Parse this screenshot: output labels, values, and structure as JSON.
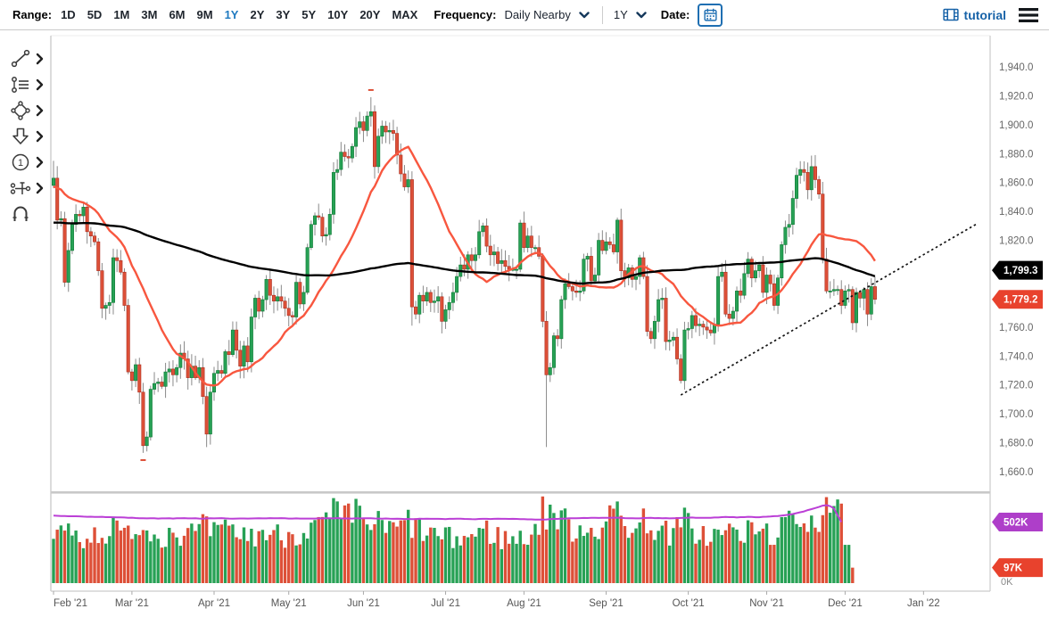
{
  "toolbar": {
    "range_label": "Range:",
    "ranges": [
      "1D",
      "5D",
      "1M",
      "3M",
      "6M",
      "9M",
      "1Y",
      "2Y",
      "3Y",
      "5Y",
      "10Y",
      "20Y",
      "MAX"
    ],
    "active_range": "1Y",
    "frequency_label": "Frequency:",
    "frequency_value": "Daily Nearby",
    "period_value": "1Y",
    "date_label": "Date:",
    "tutorial_label": "tutorial"
  },
  "sidebar": {
    "tools": [
      "trendline-tool",
      "annotation-list-tool",
      "polygon-tool",
      "arrow-tool",
      "number-annotation-tool",
      "measure-tool",
      "magnet-tool"
    ],
    "number_tool_label": "1"
  },
  "chart_data": {
    "type": "candlestick+volume",
    "x_labels": [
      "Feb '21",
      "Mar '21",
      "Apr '21",
      "May '21",
      "Jun '21",
      "Jul '21",
      "Aug '21",
      "Sep '21",
      "Oct '21",
      "Nov '21",
      "Dec '21",
      "Jan '22"
    ],
    "month_start_days": [
      0,
      21,
      43,
      63,
      83,
      105,
      126,
      148,
      170,
      191,
      212,
      233
    ],
    "y_ticks": [
      {
        "v": 1940,
        "label": "1,940.0"
      },
      {
        "v": 1920,
        "label": "1,920.0"
      },
      {
        "v": 1900,
        "label": "1,900.0"
      },
      {
        "v": 1880,
        "label": "1,880.0"
      },
      {
        "v": 1860,
        "label": "1,860.0"
      },
      {
        "v": 1840,
        "label": "1,840.0"
      },
      {
        "v": 1820,
        "label": "1,820.0"
      },
      {
        "v": 1760,
        "label": "1,760.0"
      },
      {
        "v": 1740,
        "label": "1,740.0"
      },
      {
        "v": 1720,
        "label": "1,720.0"
      },
      {
        "v": 1700,
        "label": "1,700.0"
      },
      {
        "v": 1680,
        "label": "1,680.0"
      },
      {
        "v": 1660,
        "label": "1,660.0"
      }
    ],
    "price_range": [
      1660,
      1940
    ],
    "price_badges": [
      {
        "text": "1,799.3",
        "price": 1799.3,
        "color": "#000000"
      },
      {
        "text": "1,779.2",
        "price": 1779.2,
        "color": "#e8422d"
      }
    ],
    "volume_badges": [
      {
        "text": "502K",
        "valueK": 502,
        "series": "open-interest",
        "color": "#ae3ec9"
      },
      {
        "text": "97K",
        "valueK": 97,
        "series": "volume",
        "color": "#e8422d"
      }
    ],
    "volume_zero_label": "0K",
    "closes": [
      1863,
      1834,
      1835,
      1791,
      1813,
      1831,
      1838,
      1837,
      1843,
      1826,
      1823,
      1819,
      1799,
      1773,
      1775,
      1777,
      1808,
      1806,
      1798,
      1775,
      1729,
      1723,
      1734,
      1715,
      1678,
      1684,
      1717,
      1721,
      1722,
      1719,
      1729,
      1731,
      1727,
      1732,
      1742,
      1738,
      1725,
      1733,
      1725,
      1732,
      1712,
      1686,
      1715,
      1728,
      1730,
      1728,
      1743,
      1741,
      1758,
      1744,
      1733,
      1747,
      1736,
      1767,
      1780,
      1771,
      1779,
      1793,
      1782,
      1778,
      1781,
      1778,
      1773,
      1768,
      1767,
      1791,
      1776,
      1784,
      1815,
      1831,
      1837,
      1836,
      1823,
      1824,
      1838,
      1867,
      1869,
      1881,
      1878,
      1877,
      1885,
      1898,
      1902,
      1896,
      1906,
      1909,
      1871,
      1892,
      1899,
      1895,
      1896,
      1894,
      1879,
      1866,
      1857,
      1862,
      1774,
      1769,
      1782,
      1778,
      1784,
      1777,
      1778,
      1781,
      1764,
      1772,
      1777,
      1784,
      1795,
      1803,
      1800,
      1810,
      1806,
      1810,
      1826,
      1830,
      1816,
      1810,
      1812,
      1804,
      1806,
      1802,
      1800,
      1800,
      1800,
      1832,
      1815,
      1823,
      1815,
      1815,
      1809,
      1764,
      1727,
      1732,
      1754,
      1752,
      1779,
      1790,
      1788,
      1785,
      1784,
      1785,
      1807,
      1809,
      1792,
      1796,
      1820,
      1813,
      1819,
      1817,
      1812,
      1834,
      1799,
      1794,
      1801,
      1793,
      1795,
      1808,
      1795,
      1757,
      1752,
      1764,
      1779,
      1780,
      1750,
      1751,
      1753,
      1738,
      1723,
      1758,
      1759,
      1768,
      1761,
      1762,
      1760,
      1758,
      1756,
      1762,
      1795,
      1798,
      1769,
      1766,
      1771,
      1785,
      1782,
      1797,
      1807,
      1794,
      1799,
      1803,
      1784,
      1796,
      1790,
      1775,
      1794,
      1817,
      1829,
      1831,
      1849,
      1865,
      1869,
      1867,
      1855,
      1871,
      1862,
      1852,
      1807,
      1785,
      1785,
      1786,
      1786,
      1775,
      1785,
      1786,
      1763,
      1784,
      1780,
      1786,
      1769,
      1788,
      1779.2
    ],
    "first_open": 1858,
    "high_overrides": {
      "0": 1875,
      "85": 1919,
      "204": 1879
    },
    "low_overrides": {
      "24": 1673,
      "41": 1677,
      "96": 1761,
      "132": 1677,
      "168": 1721,
      "214": 1758
    },
    "extreme_markers": [
      {
        "day": 24,
        "price": 1668,
        "type": "low"
      },
      {
        "day": 85,
        "price": 1924,
        "type": "high"
      }
    ],
    "ma_fast": {
      "window": 21,
      "pad": 1857,
      "color": "#f8573f"
    },
    "ma_slow": {
      "window": 130,
      "pad": 1832,
      "color": "#000000"
    },
    "trendline": {
      "x1_day": 168,
      "price1": 1713,
      "x2_day": 247,
      "price2": 1831,
      "style": "dashed"
    },
    "volume_envelopeK": [
      [
        0,
        300
      ],
      [
        4,
        330
      ],
      [
        8,
        290
      ],
      [
        12,
        310
      ],
      [
        16,
        330
      ],
      [
        20,
        300
      ],
      [
        21,
        380
      ],
      [
        24,
        350
      ],
      [
        28,
        300
      ],
      [
        32,
        330
      ],
      [
        36,
        300
      ],
      [
        40,
        340
      ],
      [
        44,
        310
      ],
      [
        48,
        330
      ],
      [
        52,
        290
      ],
      [
        56,
        320
      ],
      [
        60,
        300
      ],
      [
        64,
        310
      ],
      [
        68,
        340
      ],
      [
        72,
        360
      ],
      [
        75,
        430
      ],
      [
        78,
        390
      ],
      [
        81,
        430
      ],
      [
        84,
        390
      ],
      [
        88,
        350
      ],
      [
        92,
        330
      ],
      [
        95,
        390
      ],
      [
        98,
        330
      ],
      [
        102,
        300
      ],
      [
        105,
        280
      ],
      [
        108,
        270
      ],
      [
        112,
        300
      ],
      [
        116,
        330
      ],
      [
        120,
        280
      ],
      [
        124,
        270
      ],
      [
        128,
        310
      ],
      [
        131,
        430
      ],
      [
        133,
        460
      ],
      [
        136,
        390
      ],
      [
        140,
        340
      ],
      [
        144,
        360
      ],
      [
        148,
        350
      ],
      [
        151,
        470
      ],
      [
        153,
        390
      ],
      [
        156,
        330
      ],
      [
        159,
        410
      ],
      [
        162,
        330
      ],
      [
        166,
        300
      ],
      [
        169,
        390
      ],
      [
        172,
        330
      ],
      [
        176,
        280
      ],
      [
        180,
        330
      ],
      [
        184,
        300
      ],
      [
        188,
        330
      ],
      [
        192,
        310
      ],
      [
        196,
        350
      ],
      [
        200,
        390
      ],
      [
        203,
        430
      ],
      [
        205,
        410
      ],
      [
        207,
        530
      ],
      [
        208,
        510
      ],
      [
        209,
        450
      ],
      [
        211,
        390
      ],
      [
        213,
        240
      ],
      [
        214,
        97
      ]
    ],
    "volume_last_day": 214,
    "open_interestK": [
      [
        0,
        557
      ],
      [
        5,
        552
      ],
      [
        10,
        549
      ],
      [
        15,
        546
      ],
      [
        20,
        540
      ],
      [
        25,
        534
      ],
      [
        30,
        533
      ],
      [
        35,
        536
      ],
      [
        40,
        533
      ],
      [
        45,
        535
      ],
      [
        50,
        532
      ],
      [
        55,
        534
      ],
      [
        60,
        537
      ],
      [
        64,
        533
      ],
      [
        68,
        531
      ],
      [
        72,
        534
      ],
      [
        76,
        536
      ],
      [
        80,
        533
      ],
      [
        84,
        536
      ],
      [
        88,
        533
      ],
      [
        92,
        530
      ],
      [
        96,
        528
      ],
      [
        100,
        531
      ],
      [
        104,
        528
      ],
      [
        108,
        530
      ],
      [
        112,
        527
      ],
      [
        116,
        529
      ],
      [
        120,
        531
      ],
      [
        124,
        528
      ],
      [
        128,
        525
      ],
      [
        131,
        523
      ],
      [
        134,
        529
      ],
      [
        138,
        534
      ],
      [
        142,
        537
      ],
      [
        146,
        539
      ],
      [
        150,
        541
      ],
      [
        153,
        537
      ],
      [
        156,
        533
      ],
      [
        159,
        539
      ],
      [
        162,
        536
      ],
      [
        165,
        534
      ],
      [
        168,
        538
      ],
      [
        171,
        541
      ],
      [
        174,
        539
      ],
      [
        177,
        542
      ],
      [
        180,
        546
      ],
      [
        183,
        543
      ],
      [
        186,
        547
      ],
      [
        189,
        545
      ],
      [
        192,
        550
      ],
      [
        195,
        558
      ],
      [
        198,
        572
      ],
      [
        200,
        588
      ],
      [
        202,
        606
      ],
      [
        204,
        624
      ],
      [
        205,
        636
      ],
      [
        206,
        646
      ],
      [
        207,
        650
      ],
      [
        208,
        642
      ],
      [
        209,
        622
      ],
      [
        210,
        560
      ],
      [
        211,
        502
      ]
    ],
    "colors": {
      "up": "#27a155",
      "up_stroke": "#0f7a35",
      "down": "#dd5038",
      "down_stroke": "#ad2f20",
      "wick": "#8a8a8a",
      "oi_line": "#bb3fd6",
      "axis_text": "#666666",
      "border": "#cccccc",
      "accent_blue": "#1f7ac0",
      "dark_blue": "#16395c"
    }
  }
}
